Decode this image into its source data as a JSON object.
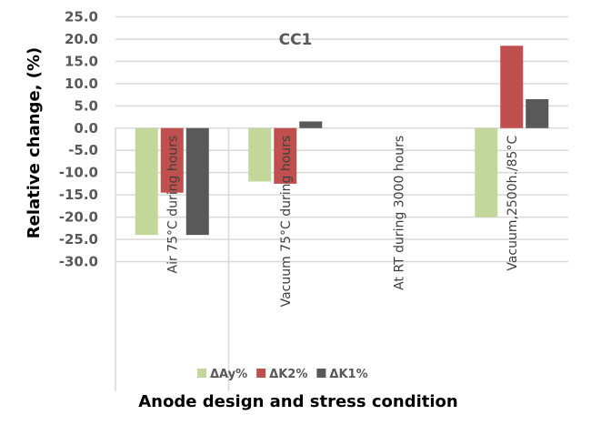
{
  "chart_data": {
    "type": "bar",
    "title": "CC1",
    "xlabel": "Anode design and stress condition",
    "ylabel": "Relative change, (%)",
    "ylim": [
      -30,
      25
    ],
    "ytick_step": 5,
    "ytick_labels": [
      "25.0",
      "20.0",
      "15.0",
      "10.0",
      "5.0",
      "0.0",
      "-5.0",
      "-10.0",
      "-15.0",
      "-20.0",
      "-25.0",
      "-30.0"
    ],
    "grid": true,
    "legend_position": "bottom",
    "categories": [
      "Air 75°C during  hours",
      "Vacuum 75°C during  hours",
      "At RT during 3000 hours",
      "Vacuum,2500h./85°C"
    ],
    "series": [
      {
        "name": "ΔAy%",
        "color": "#c4d79b",
        "values": [
          -24,
          -12,
          null,
          -20
        ]
      },
      {
        "name": "ΔK2%",
        "color": "#c0504d",
        "values": [
          -14.5,
          -12.5,
          null,
          18.5
        ]
      },
      {
        "name": "ΔK1%",
        "color": "#595959",
        "values": [
          -24,
          1.5,
          null,
          6.5
        ]
      }
    ]
  }
}
